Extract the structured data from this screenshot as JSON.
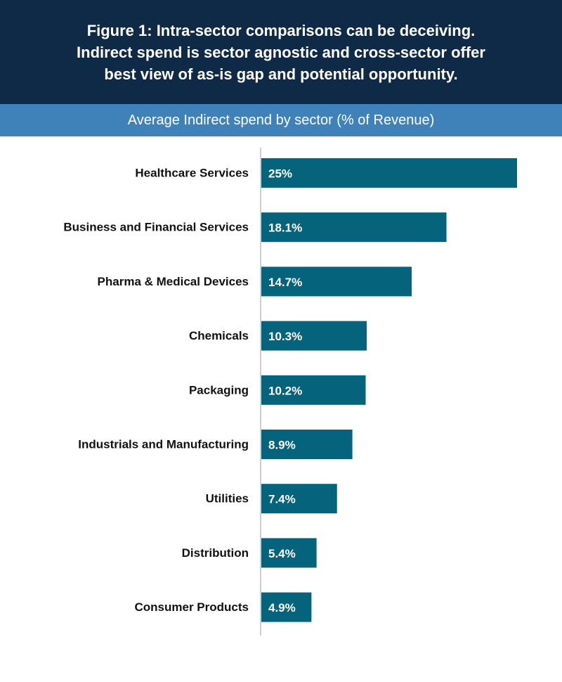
{
  "header": {
    "title_lines": [
      "Figure 1: Intra-sector comparisons can be deceiving.",
      "Indirect spend is sector agnostic and cross-sector offer",
      "best view of as-is gap and potential opportunity."
    ],
    "subtitle": "Average Indirect spend by sector (% of Revenue)"
  },
  "colors": {
    "title_background": "#0f2a47",
    "subtitle_background": "#3e82b9",
    "bar": "#05637b",
    "axis": "#bfbfbf"
  },
  "chart_data": {
    "type": "bar",
    "orientation": "horizontal",
    "title": "Average Indirect spend by sector (% of Revenue)",
    "xlabel": "",
    "ylabel": "",
    "xlim": [
      0,
      25
    ],
    "grid": false,
    "categories": [
      "Healthcare Services",
      "Business and Financial Services",
      "Pharma & Medical Devices",
      "Chemicals",
      "Packaging",
      "Industrials and Manufacturing",
      "Utilities",
      "Distribution",
      "Consumer Products"
    ],
    "values": [
      25,
      18.1,
      14.7,
      10.3,
      10.2,
      8.9,
      7.4,
      5.4,
      4.9
    ],
    "value_labels": [
      "25%",
      "18.1%",
      "14.7%",
      "10.3%",
      "10.2%",
      "8.9%",
      "7.4%",
      "5.4%",
      "4.9%"
    ]
  }
}
